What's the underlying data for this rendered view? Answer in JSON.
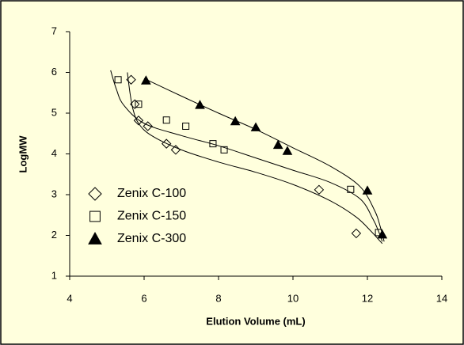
{
  "chart_data": {
    "type": "scatter",
    "x_label": "Elution Volume (mL)",
    "y_label": "LogMW",
    "xlim": [
      4,
      14
    ],
    "xticks": [
      4,
      6,
      8,
      10,
      12,
      14
    ],
    "ylim": [
      1,
      7
    ],
    "yticks": [
      1,
      2,
      3,
      4,
      5,
      6,
      7
    ],
    "legend": "lower left",
    "series": [
      {
        "name": "Zenix C-100",
        "marker": "diamond",
        "color": "#000000",
        "x": [
          5.65,
          5.75,
          5.85,
          6.1,
          6.6,
          6.85,
          10.7,
          11.7
        ],
        "values": [
          5.82,
          5.22,
          4.82,
          4.68,
          4.25,
          4.1,
          3.12,
          2.05
        ],
        "fit_x": [
          5.55,
          5.62,
          5.7,
          5.85,
          6.2,
          7,
          8,
          9,
          10,
          11,
          11.7,
          12.1,
          12.3,
          12.4
        ],
        "fit_y": [
          6.0,
          5.5,
          5.1,
          4.75,
          4.45,
          4.1,
          3.8,
          3.55,
          3.25,
          2.85,
          2.45,
          2.1,
          1.9,
          1.8
        ]
      },
      {
        "name": "Zenix C-150",
        "marker": "square",
        "color": "#000000",
        "x": [
          5.3,
          5.85,
          6.6,
          7.12,
          7.85,
          8.15,
          11.55,
          12.3
        ],
        "values": [
          5.82,
          5.22,
          4.83,
          4.68,
          4.25,
          4.1,
          3.13,
          2.07
        ],
        "fit_x": [
          5.1,
          5.25,
          5.45,
          6,
          7,
          8,
          9,
          10,
          11,
          11.8,
          12.15,
          12.3,
          12.4
        ],
        "fit_y": [
          6.05,
          5.6,
          5.2,
          4.75,
          4.45,
          4.2,
          3.9,
          3.6,
          3.3,
          2.9,
          2.4,
          2.1,
          1.85
        ]
      },
      {
        "name": "Zenix C-300",
        "marker": "triangle",
        "color": "#000000",
        "x": [
          6.05,
          7.5,
          8.45,
          9.0,
          9.6,
          9.85,
          12.0,
          12.4
        ],
        "values": [
          5.8,
          5.2,
          4.8,
          4.65,
          4.22,
          4.07,
          3.1,
          2.02
        ],
        "fit_x": [
          6,
          7,
          8,
          9,
          10,
          11,
          11.8,
          12.2,
          12.35,
          12.45
        ],
        "fit_y": [
          5.85,
          5.42,
          5.0,
          4.6,
          4.15,
          3.7,
          3.2,
          2.6,
          2.2,
          1.85
        ]
      }
    ]
  }
}
